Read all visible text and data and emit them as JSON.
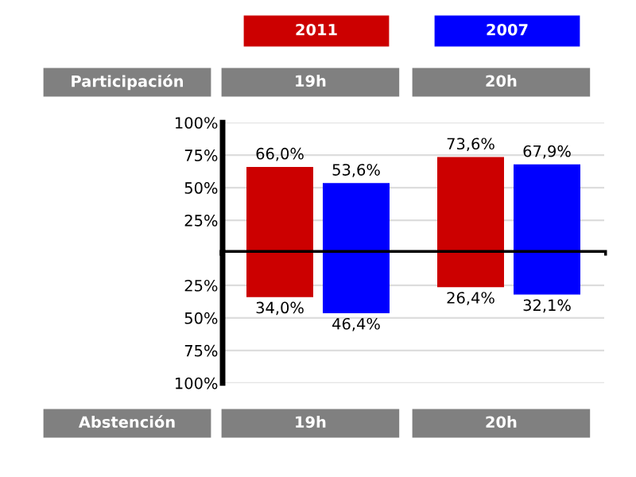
{
  "chart_data": [
    {
      "type": "bar",
      "categories": [
        "19h",
        "20h"
      ],
      "series": [
        {
          "name": "2011",
          "color": "#cc0000",
          "values": [
            66.0,
            73.6
          ],
          "value_labels": [
            "66,0%",
            "73,6%"
          ]
        },
        {
          "name": "2007",
          "color": "#0000ff",
          "values": [
            53.6,
            67.9
          ],
          "value_labels": [
            "53,6%",
            "67,9%"
          ]
        }
      ],
      "ylim": [
        0,
        100
      ],
      "yticks": [
        {
          "value": 100,
          "label": "100%"
        },
        {
          "value": 75,
          "label": "75%"
        },
        {
          "value": 50,
          "label": "50%"
        },
        {
          "value": 25,
          "label": "25%"
        }
      ],
      "ref_lines": [
        {
          "axis": "y",
          "value": 0,
          "color": "#000000"
        }
      ],
      "annotations": [
        "Participación"
      ],
      "grid": "y",
      "legend": "top"
    },
    {
      "type": "bar",
      "categories": [
        "19h",
        "20h"
      ],
      "series": [
        {
          "color": "#cc0000",
          "values": [
            34.0,
            26.4
          ],
          "value_labels": [
            "34,0%",
            "26,4%"
          ]
        },
        {
          "color": "#0000ff",
          "values": [
            46.4,
            32.1
          ],
          "value_labels": [
            "46,4%",
            "32,1%"
          ]
        }
      ],
      "ylim": [
        100,
        0
      ],
      "yticks": [
        {
          "value": 25,
          "label": "25%"
        },
        {
          "value": 50,
          "label": "50%"
        },
        {
          "value": 75,
          "label": "75%"
        },
        {
          "value": 100,
          "label": "100%"
        }
      ],
      "annotations": [
        "Abstención"
      ],
      "grid": "y"
    }
  ]
}
